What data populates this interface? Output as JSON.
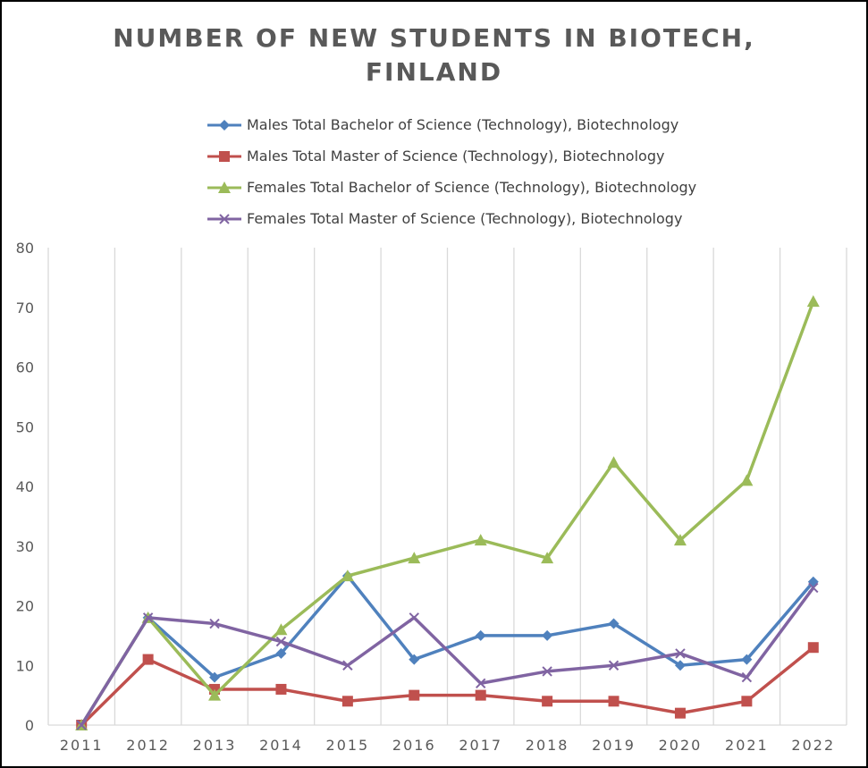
{
  "chart_data": {
    "type": "line",
    "title_lines": [
      "NUMBER OF NEW STUDENTS IN BIOTECH,",
      "FINLAND"
    ],
    "categories": [
      "2011",
      "2012",
      "2013",
      "2014",
      "2015",
      "2016",
      "2017",
      "2018",
      "2019",
      "2020",
      "2021",
      "2022"
    ],
    "ylim": [
      0,
      80
    ],
    "yticks": [
      0,
      10,
      20,
      30,
      40,
      50,
      60,
      70,
      80
    ],
    "grid": "vertical",
    "legend_position": "top",
    "series": [
      {
        "name": "Males Total Bachelor of Science (Technology), Biotechnology",
        "color": "#4f81bd",
        "marker": "diamond",
        "values": [
          0,
          18,
          8,
          12,
          25,
          11,
          15,
          15,
          17,
          10,
          11,
          24
        ]
      },
      {
        "name": "Males Total Master of Science (Technology), Biotechnology",
        "color": "#c0504d",
        "marker": "square",
        "values": [
          0,
          11,
          6,
          6,
          4,
          5,
          5,
          4,
          4,
          2,
          4,
          13
        ]
      },
      {
        "name": "Females Total Bachelor of Science (Technology), Biotechnology",
        "color": "#9bbb59",
        "marker": "triangle",
        "values": [
          0,
          18,
          5,
          16,
          25,
          28,
          31,
          28,
          44,
          31,
          41,
          71
        ]
      },
      {
        "name": "Females Total Master of Science (Technology), Biotechnology",
        "color": "#8064a2",
        "marker": "x",
        "values": [
          0,
          18,
          17,
          14,
          10,
          18,
          7,
          9,
          10,
          12,
          8,
          23
        ]
      }
    ]
  }
}
